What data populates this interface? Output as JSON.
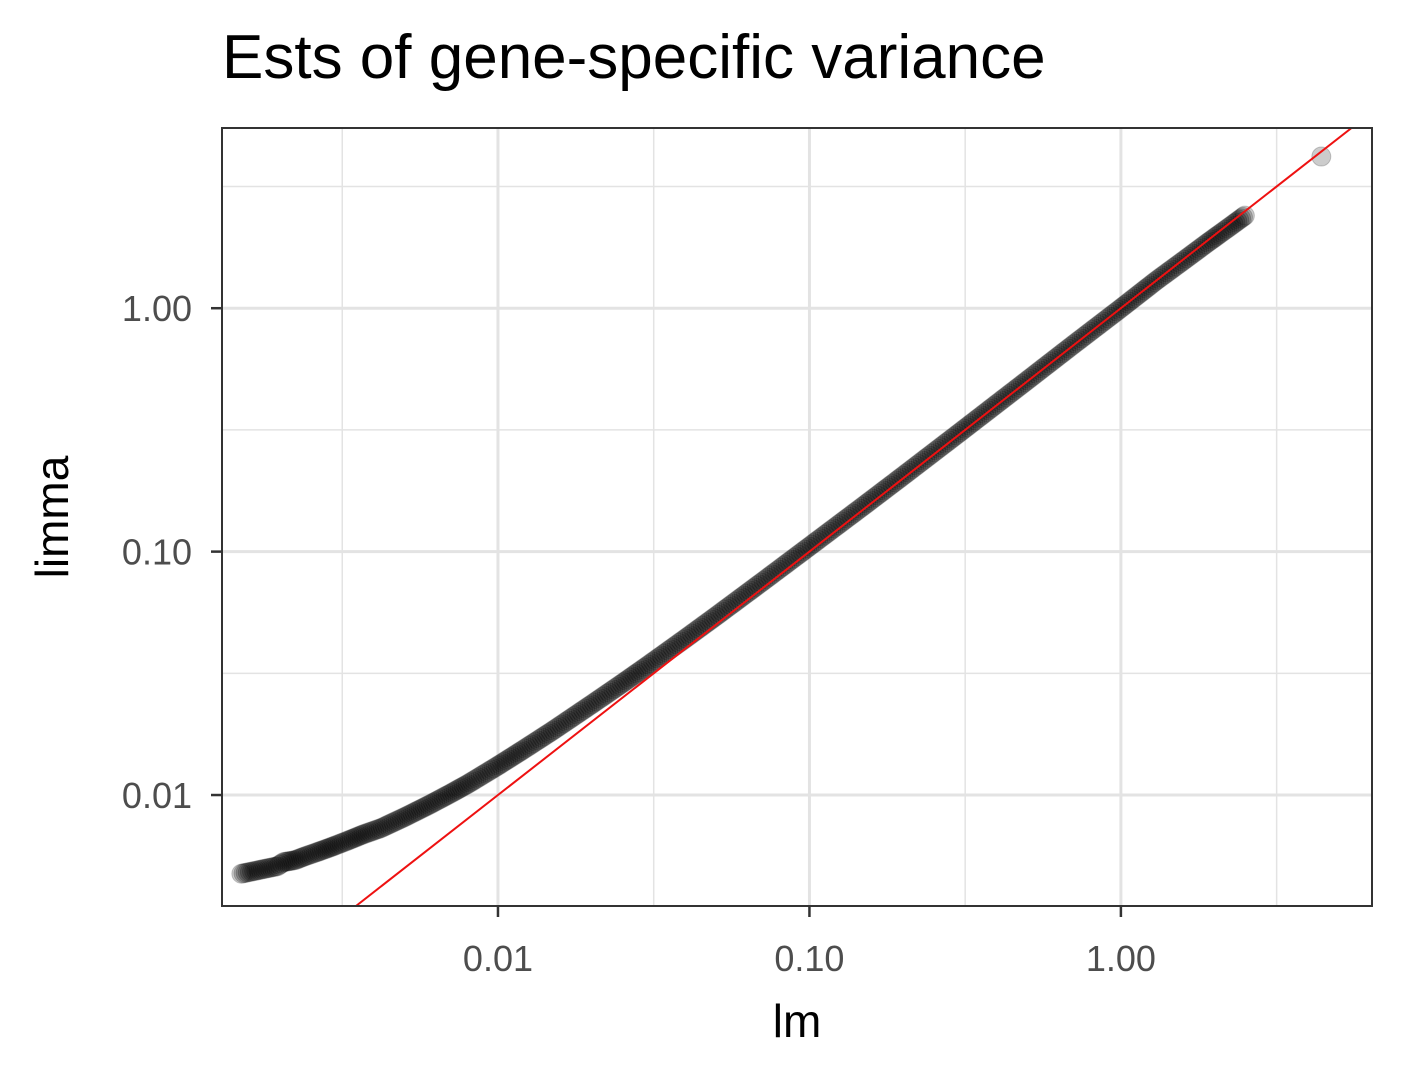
{
  "chart_data": {
    "type": "scatter",
    "title": "Ests of gene-specific variance",
    "xlabel": "lm",
    "ylabel": "limma",
    "x_scale": "log10",
    "y_scale": "log10",
    "xlim": [
      0.0013,
      6.4
    ],
    "ylim": [
      0.0035,
      5.5
    ],
    "x_ticks": [
      0.01,
      0.1,
      1
    ],
    "x_tick_labels": [
      "0.01",
      "0.10",
      "1.00"
    ],
    "y_ticks": [
      0.01,
      0.1,
      1
    ],
    "y_tick_labels": [
      "0.01",
      "0.10",
      "1.00"
    ],
    "grid": true,
    "legend": "none",
    "reference_line": {
      "type": "identity",
      "slope": 1,
      "intercept": 0,
      "color": "#ee1111"
    },
    "points": {
      "color": "#000000",
      "opacity": 0.2,
      "x": [
        0.0015,
        0.00196,
        0.00205,
        0.00223,
        0.0024,
        0.0026,
        0.0028,
        0.003,
        0.0033,
        0.0037,
        0.0042,
        0.005,
        0.006,
        0.007,
        0.008,
        0.01,
        0.012,
        0.015,
        0.02,
        0.025,
        0.03,
        0.04,
        0.05,
        0.07,
        0.1,
        0.15,
        0.2,
        0.3,
        0.5,
        0.7,
        1.0,
        1.3,
        1.6,
        1.9,
        2.1,
        2.3,
        2.5,
        4.4
      ],
      "y": [
        0.00475,
        0.0051,
        0.0053,
        0.0054,
        0.0056,
        0.0058,
        0.006,
        0.0062,
        0.0065,
        0.0069,
        0.0073,
        0.0081,
        0.0091,
        0.0101,
        0.0111,
        0.0132,
        0.0153,
        0.0184,
        0.0236,
        0.0287,
        0.0338,
        0.044,
        0.0542,
        0.0746,
        0.105,
        0.155,
        0.205,
        0.305,
        0.505,
        0.705,
        1.0,
        1.3,
        1.58,
        1.86,
        2.04,
        2.22,
        2.4,
        4.2
      ]
    }
  }
}
